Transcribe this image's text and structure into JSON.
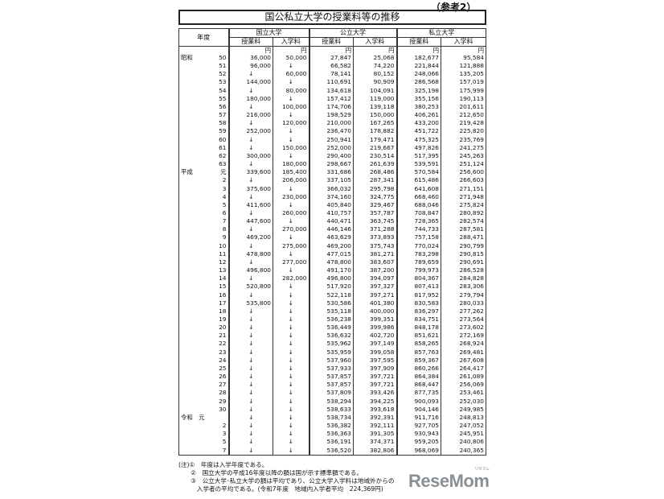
{
  "ref_label": "（参考2）",
  "title": "国公私立大学の授業料等の推移",
  "headers": {
    "year": "年度",
    "national": "国立大学",
    "public": "公立大学",
    "private": "私立大学",
    "tuition": "授業料",
    "admission": "入学料",
    "unit": "円"
  },
  "rows": [
    [
      "昭和",
      "50",
      "36,000",
      "50,000",
      "27,847",
      "25,068",
      "182,677",
      "95,584"
    ],
    [
      "",
      "51",
      "96,000",
      "↓",
      "66,582",
      "74,220",
      "221,844",
      "121,888"
    ],
    [
      "",
      "52",
      "↓",
      "60,000",
      "78,141",
      "80,152",
      "248,066",
      "135,205"
    ],
    [
      "",
      "53",
      "144,000",
      "↓",
      "110,691",
      "90,909",
      "286,568",
      "157,019"
    ],
    [
      "",
      "54",
      "↓",
      "80,000",
      "134,618",
      "104,091",
      "325,198",
      "175,999"
    ],
    [
      "",
      "55",
      "180,000",
      "↓",
      "157,412",
      "119,000",
      "355,156",
      "190,113"
    ],
    [
      "",
      "56",
      "↓",
      "100,000",
      "174,706",
      "139,118",
      "380,253",
      "201,611"
    ],
    [
      "",
      "57",
      "216,000",
      "↓",
      "198,529",
      "150,000",
      "406,261",
      "212,650"
    ],
    [
      "",
      "58",
      "↓",
      "120,000",
      "210,000",
      "167,265",
      "433,200",
      "219,428"
    ],
    [
      "",
      "59",
      "252,000",
      "↓",
      "236,470",
      "178,882",
      "451,722",
      "225,820"
    ],
    [
      "",
      "60",
      "↓",
      "↓",
      "250,941",
      "179,471",
      "475,325",
      "235,769"
    ],
    [
      "",
      "61",
      "↓",
      "150,000",
      "252,000",
      "219,667",
      "497,826",
      "241,275"
    ],
    [
      "",
      "62",
      "300,000",
      "↓",
      "290,400",
      "230,514",
      "517,395",
      "245,263"
    ],
    [
      "",
      "63",
      "↓",
      "180,000",
      "298,667",
      "261,639",
      "539,591",
      "251,124"
    ],
    [
      "平成",
      "元",
      "339,600",
      "185,400",
      "331,686",
      "268,486",
      "570,584",
      "256,600"
    ],
    [
      "",
      "2",
      "↓",
      "206,000",
      "337,105",
      "287,341",
      "615,486",
      "266,603"
    ],
    [
      "",
      "3",
      "375,600",
      "↓",
      "366,032",
      "295,798",
      "641,608",
      "271,151"
    ],
    [
      "",
      "4",
      "↓",
      "230,000",
      "374,160",
      "324,775",
      "668,460",
      "271,948"
    ],
    [
      "",
      "5",
      "411,600",
      "↓",
      "405,840",
      "329,467",
      "688,046",
      "275,824"
    ],
    [
      "",
      "6",
      "↓",
      "260,000",
      "410,757",
      "357,787",
      "708,847",
      "280,892"
    ],
    [
      "",
      "7",
      "447,600",
      "↓",
      "440,471",
      "363,745",
      "728,365",
      "282,574"
    ],
    [
      "",
      "8",
      "↓",
      "270,000",
      "446,146",
      "371,288",
      "744,733",
      "287,581"
    ],
    [
      "",
      "9",
      "469,200",
      "↓",
      "463,629",
      "373,893",
      "757,158",
      "288,471"
    ],
    [
      "",
      "10",
      "↓",
      "275,000",
      "469,200",
      "375,743",
      "770,024",
      "290,799"
    ],
    [
      "",
      "11",
      "478,800",
      "↓",
      "477,015",
      "381,271",
      "783,298",
      "290,815"
    ],
    [
      "",
      "12",
      "↓",
      "277,000",
      "478,800",
      "383,607",
      "789,659",
      "290,691"
    ],
    [
      "",
      "13",
      "496,800",
      "↓",
      "491,170",
      "387,200",
      "799,973",
      "286,528"
    ],
    [
      "",
      "14",
      "↓",
      "282,000",
      "496,800",
      "394,097",
      "804,367",
      "284,828"
    ],
    [
      "",
      "15",
      "520,800",
      "↓",
      "517,920",
      "397,327",
      "807,413",
      "283,306"
    ],
    [
      "",
      "16",
      "↓",
      "↓",
      "522,118",
      "397,271",
      "817,952",
      "279,794"
    ],
    [
      "",
      "17",
      "535,800",
      "↓",
      "530,586",
      "401,380",
      "830,583",
      "280,033"
    ],
    [
      "",
      "18",
      "↓",
      "↓",
      "535,118",
      "400,000",
      "836,297",
      "277,262"
    ],
    [
      "",
      "19",
      "↓",
      "↓",
      "536,238",
      "399,351",
      "834,751",
      "273,564"
    ],
    [
      "",
      "20",
      "↓",
      "↓",
      "536,449",
      "399,986",
      "848,178",
      "273,602"
    ],
    [
      "",
      "21",
      "↓",
      "↓",
      "536,632",
      "402,720",
      "851,621",
      "272,169"
    ],
    [
      "",
      "22",
      "↓",
      "↓",
      "535,962",
      "397,149",
      "858,265",
      "268,924"
    ],
    [
      "",
      "23",
      "↓",
      "↓",
      "535,959",
      "399,058",
      "857,763",
      "269,481"
    ],
    [
      "",
      "24",
      "↓",
      "↓",
      "537,960",
      "397,595",
      "859,367",
      "267,608"
    ],
    [
      "",
      "25",
      "↓",
      "↓",
      "537,933",
      "397,909",
      "860,266",
      "264,417"
    ],
    [
      "",
      "26",
      "↓",
      "↓",
      "537,857",
      "397,721",
      "864,384",
      "261,089"
    ],
    [
      "",
      "27",
      "↓",
      "↓",
      "537,857",
      "397,721",
      "868,447",
      "256,069"
    ],
    [
      "",
      "28",
      "↓",
      "↓",
      "537,809",
      "393,426",
      "877,735",
      "253,461"
    ],
    [
      "",
      "29",
      "↓",
      "↓",
      "538,294",
      "394,225",
      "900,093",
      "252,030"
    ],
    [
      "",
      "30",
      "↓",
      "↓",
      "538,633",
      "393,618",
      "904,146",
      "249,985"
    ],
    [
      "令和　元",
      "",
      "↓",
      "↓",
      "538,734",
      "392,391",
      "911,716",
      "248,813"
    ],
    [
      "",
      "2",
      "↓",
      "↓",
      "536,382",
      "392,111",
      "927,705",
      "247,052"
    ],
    [
      "",
      "3",
      "↓",
      "↓",
      "536,363",
      "391,305",
      "930,943",
      "245,951"
    ],
    [
      "",
      "5",
      "↓",
      "↓",
      "536,191",
      "374,371",
      "959,205",
      "240,806"
    ],
    [
      "",
      "7",
      "↓",
      "↓",
      "536,520",
      "382,806",
      "968,069",
      "240,365"
    ]
  ],
  "notes": [
    "(注)①　年度は入学年度である。",
    "　　②　国立大学の平成16年度以降の額は国が示す標準額である。",
    "　　③　公立大学･私立大学の額は平均であり、公立大学入学料は地域外からの",
    "　　　入学者の平均である。(令和7年度　地域内入学者平均　224,369円)"
  ],
  "watermark": {
    "text": "ReseMom",
    "ruby": "リセマム",
    "color": "#8a8f94"
  }
}
